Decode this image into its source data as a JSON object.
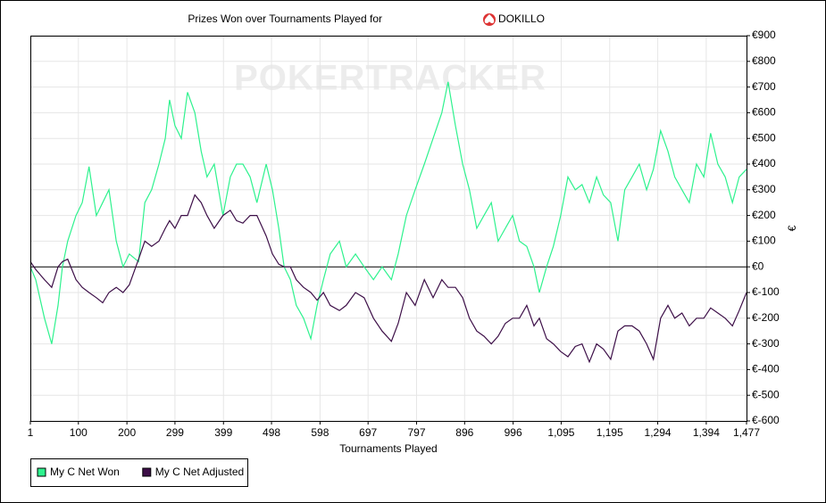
{
  "chart_data": {
    "type": "line",
    "title": "Prizes Won over Tournaments Played for",
    "player": "DOKILLO",
    "watermark": "POKERTRACKER",
    "x_label": "Tournaments Played",
    "y_label": "€",
    "xlim": [
      1,
      1477
    ],
    "ylim": [
      -600,
      900
    ],
    "xticks": [
      1,
      100,
      200,
      299,
      399,
      498,
      598,
      697,
      797,
      896,
      996,
      {
        "value": 1095,
        "label": "1,095"
      },
      {
        "value": 1195,
        "label": "1,195"
      },
      {
        "value": 1294,
        "label": "1,294"
      },
      {
        "value": 1394,
        "label": "1,394"
      },
      {
        "value": 1477,
        "label": "1,477"
      }
    ],
    "yticks": [
      {
        "value": -600,
        "label": "€-600"
      },
      {
        "value": -500,
        "label": "€-500"
      },
      {
        "value": -400,
        "label": "€-400"
      },
      {
        "value": -300,
        "label": "€-300"
      },
      {
        "value": -200,
        "label": "€-200"
      },
      {
        "value": -100,
        "label": "€-100"
      },
      {
        "value": 0,
        "label": "€0"
      },
      {
        "value": 100,
        "label": "€100"
      },
      {
        "value": 200,
        "label": "€200"
      },
      {
        "value": 300,
        "label": "€300"
      },
      {
        "value": 400,
        "label": "€400"
      },
      {
        "value": 500,
        "label": "€500"
      },
      {
        "value": 600,
        "label": "€600"
      },
      {
        "value": 700,
        "label": "€700"
      },
      {
        "value": 800,
        "label": "€800"
      },
      {
        "value": 900,
        "label": "€900"
      }
    ],
    "grid": true,
    "legend": "bottom-left",
    "x": [
      1,
      12,
      30,
      45,
      58,
      67,
      78,
      95,
      108,
      122,
      137,
      150,
      163,
      178,
      192,
      205,
      224,
      237,
      251,
      266,
      279,
      288,
      299,
      312,
      325,
      340,
      353,
      365,
      380,
      398,
      413,
      426,
      439,
      454,
      468,
      487,
      500,
      513,
      524,
      537,
      549,
      564,
      579,
      592,
      605,
      619,
      638,
      652,
      671,
      689,
      708,
      726,
      745,
      759,
      776,
      794,
      813,
      831,
      849,
      862,
      877,
      892,
      906,
      921,
      936,
      951,
      965,
      980,
      995,
      1009,
      1024,
      1039,
      1050,
      1065,
      1079,
      1094,
      1109,
      1124,
      1138,
      1153,
      1168,
      1182,
      1197,
      1212,
      1226,
      1241,
      1256,
      1271,
      1285,
      1300,
      1315,
      1329,
      1344,
      1359,
      1374,
      1389,
      1403,
      1418,
      1433,
      1448,
      1462,
      1477
    ],
    "series": [
      {
        "name": "My C Net Won",
        "color": "#2ef28e",
        "values": [
          0,
          -50,
          -200,
          -300,
          -150,
          0,
          100,
          200,
          250,
          390,
          200,
          250,
          300,
          100,
          0,
          50,
          20,
          250,
          300,
          400,
          500,
          650,
          550,
          500,
          680,
          600,
          450,
          350,
          400,
          200,
          350,
          400,
          400,
          350,
          250,
          400,
          300,
          150,
          0,
          -50,
          -150,
          -200,
          -280,
          -150,
          -50,
          50,
          100,
          0,
          50,
          0,
          -50,
          0,
          -50,
          50,
          200,
          300,
          400,
          500,
          600,
          720,
          550,
          400,
          300,
          150,
          200,
          250,
          100,
          150,
          200,
          100,
          80,
          0,
          -100,
          0,
          80,
          200,
          350,
          300,
          320,
          250,
          350,
          280,
          250,
          100,
          300,
          350,
          400,
          300,
          380,
          530,
          450,
          350,
          300,
          250,
          400,
          350,
          520,
          400,
          350,
          250,
          350,
          380
        ]
      },
      {
        "name": "My C Net Adjusted",
        "color": "#3d0f48",
        "values": [
          20,
          -10,
          -50,
          -80,
          0,
          20,
          30,
          -50,
          -80,
          -100,
          -120,
          -140,
          -100,
          -80,
          -100,
          -70,
          30,
          100,
          80,
          100,
          150,
          180,
          150,
          200,
          200,
          280,
          250,
          200,
          150,
          200,
          220,
          180,
          170,
          200,
          200,
          120,
          50,
          10,
          0,
          0,
          -50,
          -80,
          -100,
          -130,
          -100,
          -150,
          -170,
          -150,
          -100,
          -120,
          -200,
          -250,
          -290,
          -220,
          -100,
          -150,
          -50,
          -120,
          -50,
          -80,
          -80,
          -120,
          -200,
          -250,
          -270,
          -300,
          -270,
          -220,
          -200,
          -200,
          -150,
          -230,
          -200,
          -280,
          -300,
          -330,
          -350,
          -310,
          -300,
          -370,
          -300,
          -320,
          -360,
          -250,
          -230,
          -230,
          -250,
          -300,
          -360,
          -200,
          -150,
          -200,
          -180,
          -230,
          -200,
          -200,
          -160,
          -180,
          -200,
          -230,
          -170,
          -100
        ]
      }
    ]
  }
}
